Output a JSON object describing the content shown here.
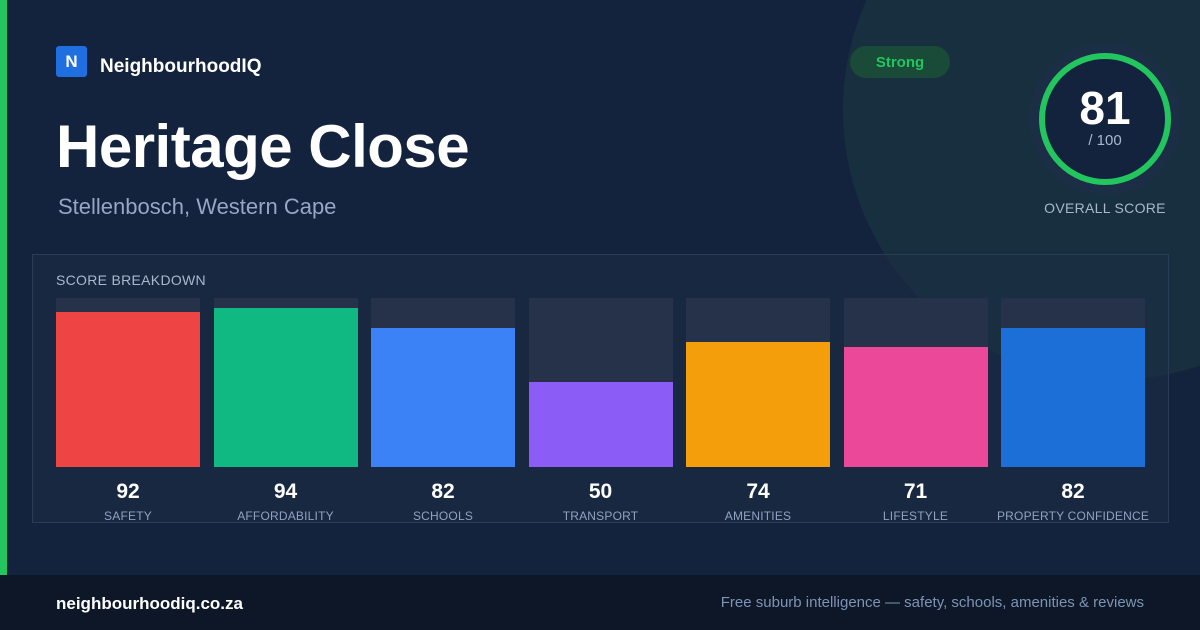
{
  "brand": {
    "logo_letter": "N",
    "name": "NeighbourhoodIQ",
    "logo_color": "#1f6fe0"
  },
  "header": {
    "title": "Heritage Close",
    "subtitle": "Stellenbosch, Western Cape"
  },
  "rating_badge": {
    "label": "Strong",
    "color": "#22c55e"
  },
  "overall_score": {
    "value": "81",
    "max_label": "/ 100",
    "label": "OVERALL SCORE",
    "fraction": 0.81,
    "ring_color": "#22c55e"
  },
  "breakdown": {
    "title": "SCORE BREAKDOWN",
    "items": [
      {
        "label": "SAFETY",
        "value": 92,
        "color": "#ef4444"
      },
      {
        "label": "AFFORDABILITY",
        "value": 94,
        "color": "#10b981"
      },
      {
        "label": "SCHOOLS",
        "value": 82,
        "color": "#3b82f6"
      },
      {
        "label": "TRANSPORT",
        "value": 50,
        "color": "#8b5cf6"
      },
      {
        "label": "AMENITIES",
        "value": 74,
        "color": "#f59e0b"
      },
      {
        "label": "LIFESTYLE",
        "value": 71,
        "color": "#ec4899"
      },
      {
        "label": "PROPERTY CONFIDENCE",
        "value": 82,
        "color": "#1d6fd8"
      }
    ]
  },
  "footer": {
    "url": "neighbourhoodiq.co.za",
    "tagline": "Free suburb intelligence — safety, schools, amenities & reviews"
  }
}
